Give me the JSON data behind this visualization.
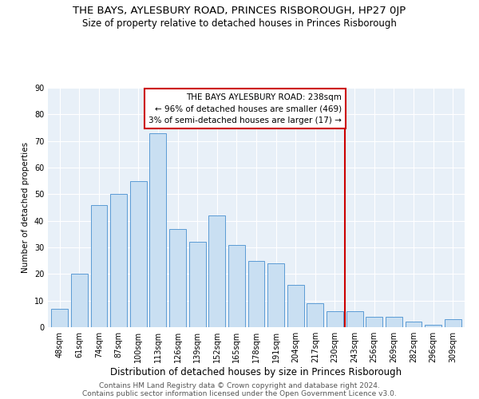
{
  "title": "THE BAYS, AYLESBURY ROAD, PRINCES RISBOROUGH, HP27 0JP",
  "subtitle": "Size of property relative to detached houses in Princes Risborough",
  "xlabel": "Distribution of detached houses by size in Princes Risborough",
  "ylabel": "Number of detached properties",
  "categories": [
    "48sqm",
    "61sqm",
    "74sqm",
    "87sqm",
    "100sqm",
    "113sqm",
    "126sqm",
    "139sqm",
    "152sqm",
    "165sqm",
    "178sqm",
    "191sqm",
    "204sqm",
    "217sqm",
    "230sqm",
    "243sqm",
    "256sqm",
    "269sqm",
    "282sqm",
    "296sqm",
    "309sqm"
  ],
  "values": [
    7,
    20,
    46,
    50,
    55,
    73,
    37,
    32,
    42,
    31,
    25,
    24,
    16,
    9,
    6,
    6,
    4,
    4,
    2,
    1,
    3
  ],
  "bar_color": "#c9dff2",
  "bar_edge_color": "#5b9bd5",
  "vline_x_index": 15,
  "vline_color": "#cc0000",
  "annotation_line1": "THE BAYS AYLESBURY ROAD: 238sqm",
  "annotation_line2": "← 96% of detached houses are smaller (469)",
  "annotation_line3": "3% of semi-detached houses are larger (17) →",
  "annotation_box_color": "#ffffff",
  "annotation_box_edge_color": "#cc0000",
  "ylim": [
    0,
    90
  ],
  "yticks": [
    0,
    10,
    20,
    30,
    40,
    50,
    60,
    70,
    80,
    90
  ],
  "footer1": "Contains HM Land Registry data © Crown copyright and database right 2024.",
  "footer2": "Contains public sector information licensed under the Open Government Licence v3.0.",
  "bg_color": "#e8f0f8",
  "title_fontsize": 9.5,
  "subtitle_fontsize": 8.5,
  "tick_fontsize": 7,
  "xlabel_fontsize": 8.5,
  "ylabel_fontsize": 7.5,
  "footer_fontsize": 6.5,
  "annotation_fontsize": 7.5
}
